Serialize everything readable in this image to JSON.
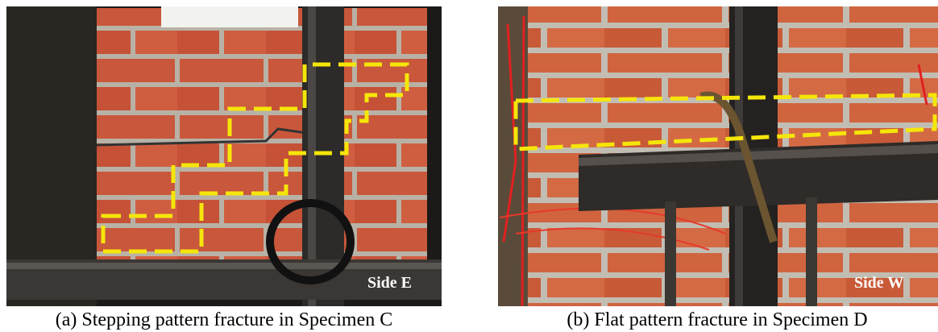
{
  "figures": [
    {
      "label": "Side E",
      "caption": "(a) Stepping pattern fracture in Specimen C"
    },
    {
      "label": "Side W",
      "caption": "(b) Flat pattern fracture in Specimen D"
    }
  ]
}
